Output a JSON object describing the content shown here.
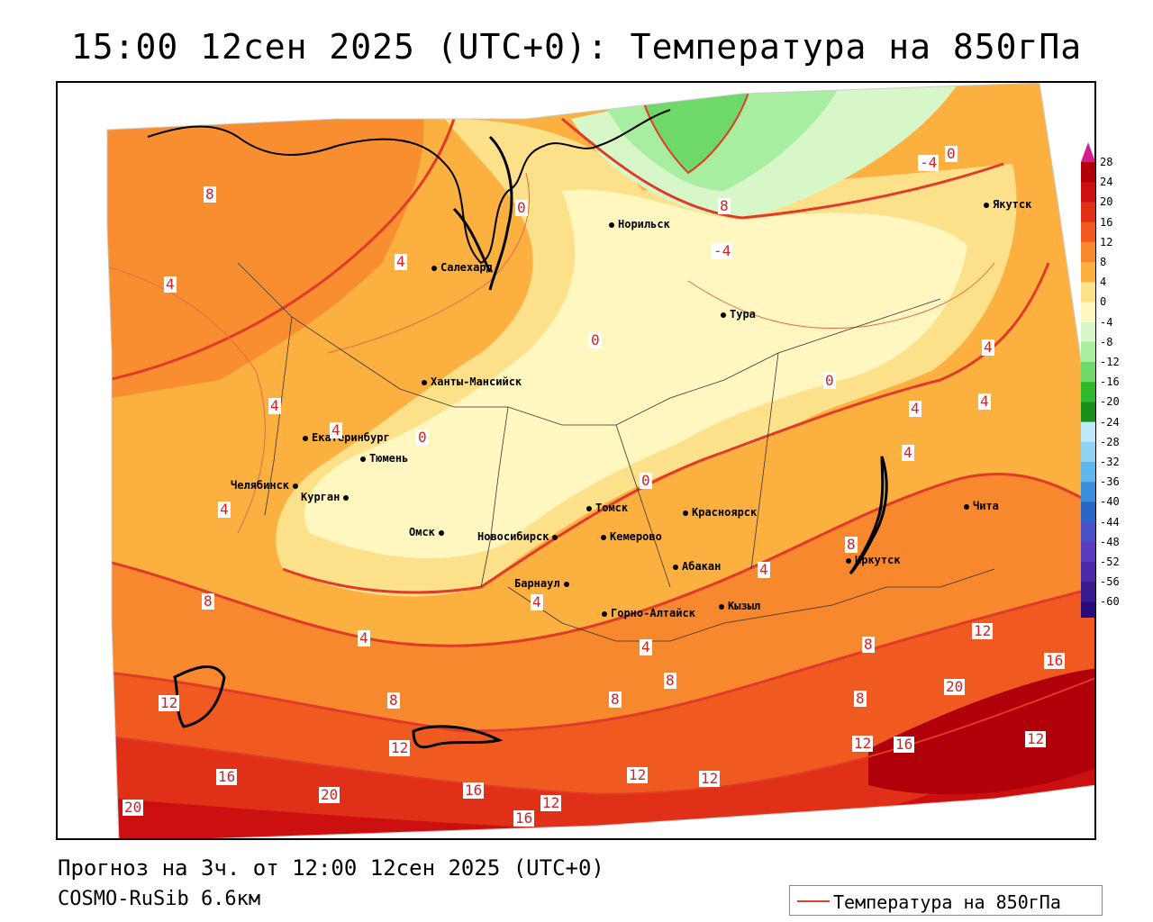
{
  "title": "15:00 12сен 2025 (UTC+0): Температура на 850гПа",
  "footer": {
    "forecast": "Прогноз на 3ч. от 12:00 12сен 2025 (UTC+0)",
    "model": "COSMO-RuSib 6.6км"
  },
  "legend": {
    "label": "Температура на 850гПа",
    "line_color": "#e03a2a"
  },
  "color_scale": {
    "labels": [
      "28",
      "24",
      "20",
      "16",
      "12",
      "8",
      "4",
      "0",
      "-4",
      "-8",
      "-12",
      "-16",
      "-20",
      "-24",
      "-28",
      "-32",
      "-36",
      "-40",
      "-44",
      "-48",
      "-52",
      "-56",
      "-60"
    ],
    "colors": [
      "#b0000a",
      "#cc1010",
      "#e03018",
      "#f05a20",
      "#f7882e",
      "#fbb040",
      "#fde08a",
      "#fff6c0",
      "#d8f7c8",
      "#a8eea0",
      "#6ed868",
      "#2eb82e",
      "#1a8f1a",
      "#bfe8f8",
      "#8fd2f2",
      "#5fb6ea",
      "#3a8fdc",
      "#2a66c8",
      "#4a50c8",
      "#5a3cc0",
      "#4a2aa8",
      "#3a1a90",
      "#2a0a78"
    ]
  },
  "cities": [
    {
      "name": "Норильск"
    },
    {
      "name": "Якутск"
    },
    {
      "name": "Салехард"
    },
    {
      "name": "Тура"
    },
    {
      "name": "Ханты-Мансийск"
    },
    {
      "name": "Екатеринбург"
    },
    {
      "name": "Тюмень"
    },
    {
      "name": "Челябинск"
    },
    {
      "name": "Курган"
    },
    {
      "name": "Омск"
    },
    {
      "name": "Томск"
    },
    {
      "name": "Красноярск"
    },
    {
      "name": "Новосибирск"
    },
    {
      "name": "Кемерово"
    },
    {
      "name": "Абакан"
    },
    {
      "name": "Барнаул"
    },
    {
      "name": "Горно-Алтайск"
    },
    {
      "name": "Кызыл"
    },
    {
      "name": "Иркутск"
    },
    {
      "name": "Чита"
    }
  ],
  "contour_labels": [
    "8",
    "0",
    "8",
    "-4",
    "-4",
    "0",
    "4",
    "4",
    "0",
    "4",
    "4",
    "0",
    "0",
    "0",
    "4",
    "4",
    "4",
    "4",
    "4",
    "8",
    "4",
    "4",
    "4",
    "8",
    "8",
    "8",
    "4",
    "8",
    "8",
    "12",
    "16",
    "12",
    "8",
    "12",
    "12",
    "16",
    "20",
    "20",
    "16",
    "12",
    "16",
    "12",
    "12",
    "20",
    "16",
    "12"
  ]
}
